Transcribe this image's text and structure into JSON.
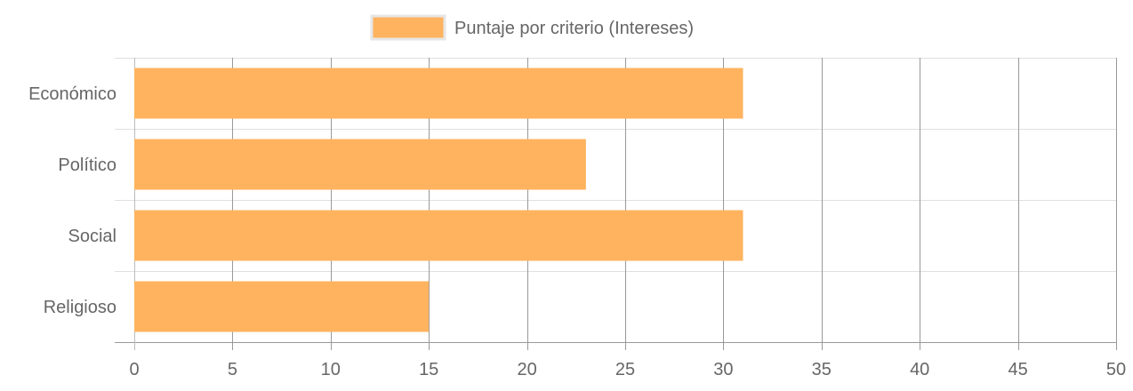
{
  "chart_data": {
    "type": "bar",
    "orientation": "horizontal",
    "categories": [
      "Económico",
      "Político",
      "Social",
      "Religioso"
    ],
    "series": [
      {
        "name": "Puntaje por criterio (Intereses)",
        "values": [
          31,
          23,
          31,
          15
        ],
        "color": "#ffb35f"
      }
    ],
    "xlim": [
      0,
      50
    ],
    "xticks": [
      0,
      5,
      10,
      15,
      20,
      25,
      30,
      35,
      40,
      45,
      50
    ],
    "grid": true,
    "legend_position": "top-center"
  },
  "colors": {
    "bar_fill": "#ffb35f",
    "grid": "#e0e0e0",
    "vertical_grid": "#999999",
    "axis_text": "#666666"
  }
}
